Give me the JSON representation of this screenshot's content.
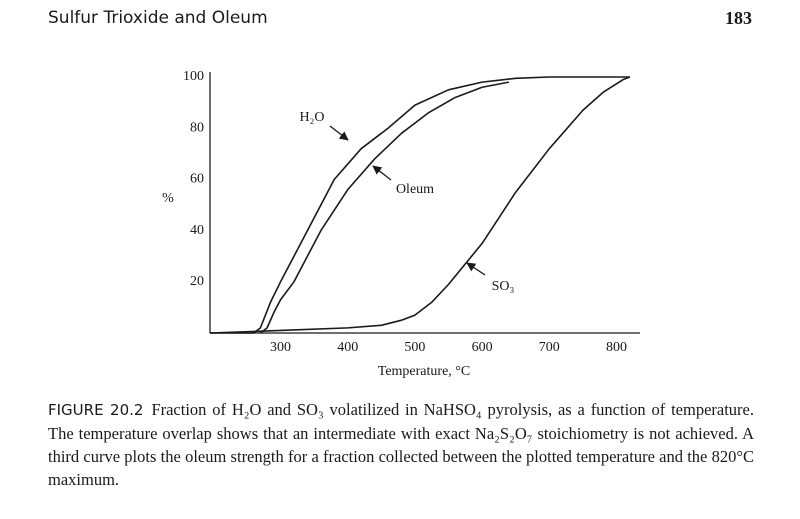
{
  "header": {
    "title": "Sulfur Trioxide and Oleum",
    "page": "183"
  },
  "chart_data": {
    "type": "line",
    "xlabel": "Temperature, °C",
    "ylabel": "%",
    "xlim": [
      195,
      835
    ],
    "ylim": [
      0,
      100
    ],
    "xticks": [
      300,
      400,
      500,
      600,
      700,
      800
    ],
    "yticks": [
      20,
      40,
      60,
      80,
      100
    ],
    "grid": false,
    "series": [
      {
        "name": "H₂O",
        "color": "#1a1a1a",
        "x": [
          195,
          260,
          270,
          285,
          300,
          340,
          380,
          420,
          460,
          500,
          550,
          600,
          650,
          700,
          760,
          820
        ],
        "values": [
          0,
          0,
          2,
          12,
          20,
          40,
          60,
          72,
          80,
          89,
          95,
          98,
          99.5,
          100,
          100,
          100
        ]
      },
      {
        "name": "Oleum",
        "color": "#1a1a1a",
        "x": [
          270,
          280,
          290,
          300,
          320,
          360,
          400,
          440,
          480,
          520,
          560,
          600,
          640
        ],
        "values": [
          0,
          2,
          8,
          13,
          20,
          40,
          56,
          68,
          78,
          86,
          92,
          96,
          98
        ]
      },
      {
        "name": "SO₃",
        "color": "#1a1a1a",
        "x": [
          195,
          300,
          400,
          450,
          480,
          500,
          525,
          550,
          600,
          650,
          700,
          750,
          780,
          810,
          820
        ],
        "values": [
          0,
          1,
          2,
          3,
          5,
          7,
          12,
          19,
          35,
          55,
          72,
          87,
          94,
          99,
          100
        ]
      }
    ]
  },
  "caption": {
    "label": "FIGURE 20.2",
    "text": "Fraction of H₂O and SO₃ volatilized in NaHSO₄ pyrolysis, as a function of temperature. The temperature overlap shows that an intermediate with exact Na₂S₂O₇ stoichiometry is not achieved. A third curve plots the oleum strength for a fraction collected between the plotted temperature and the 820°C maximum."
  }
}
